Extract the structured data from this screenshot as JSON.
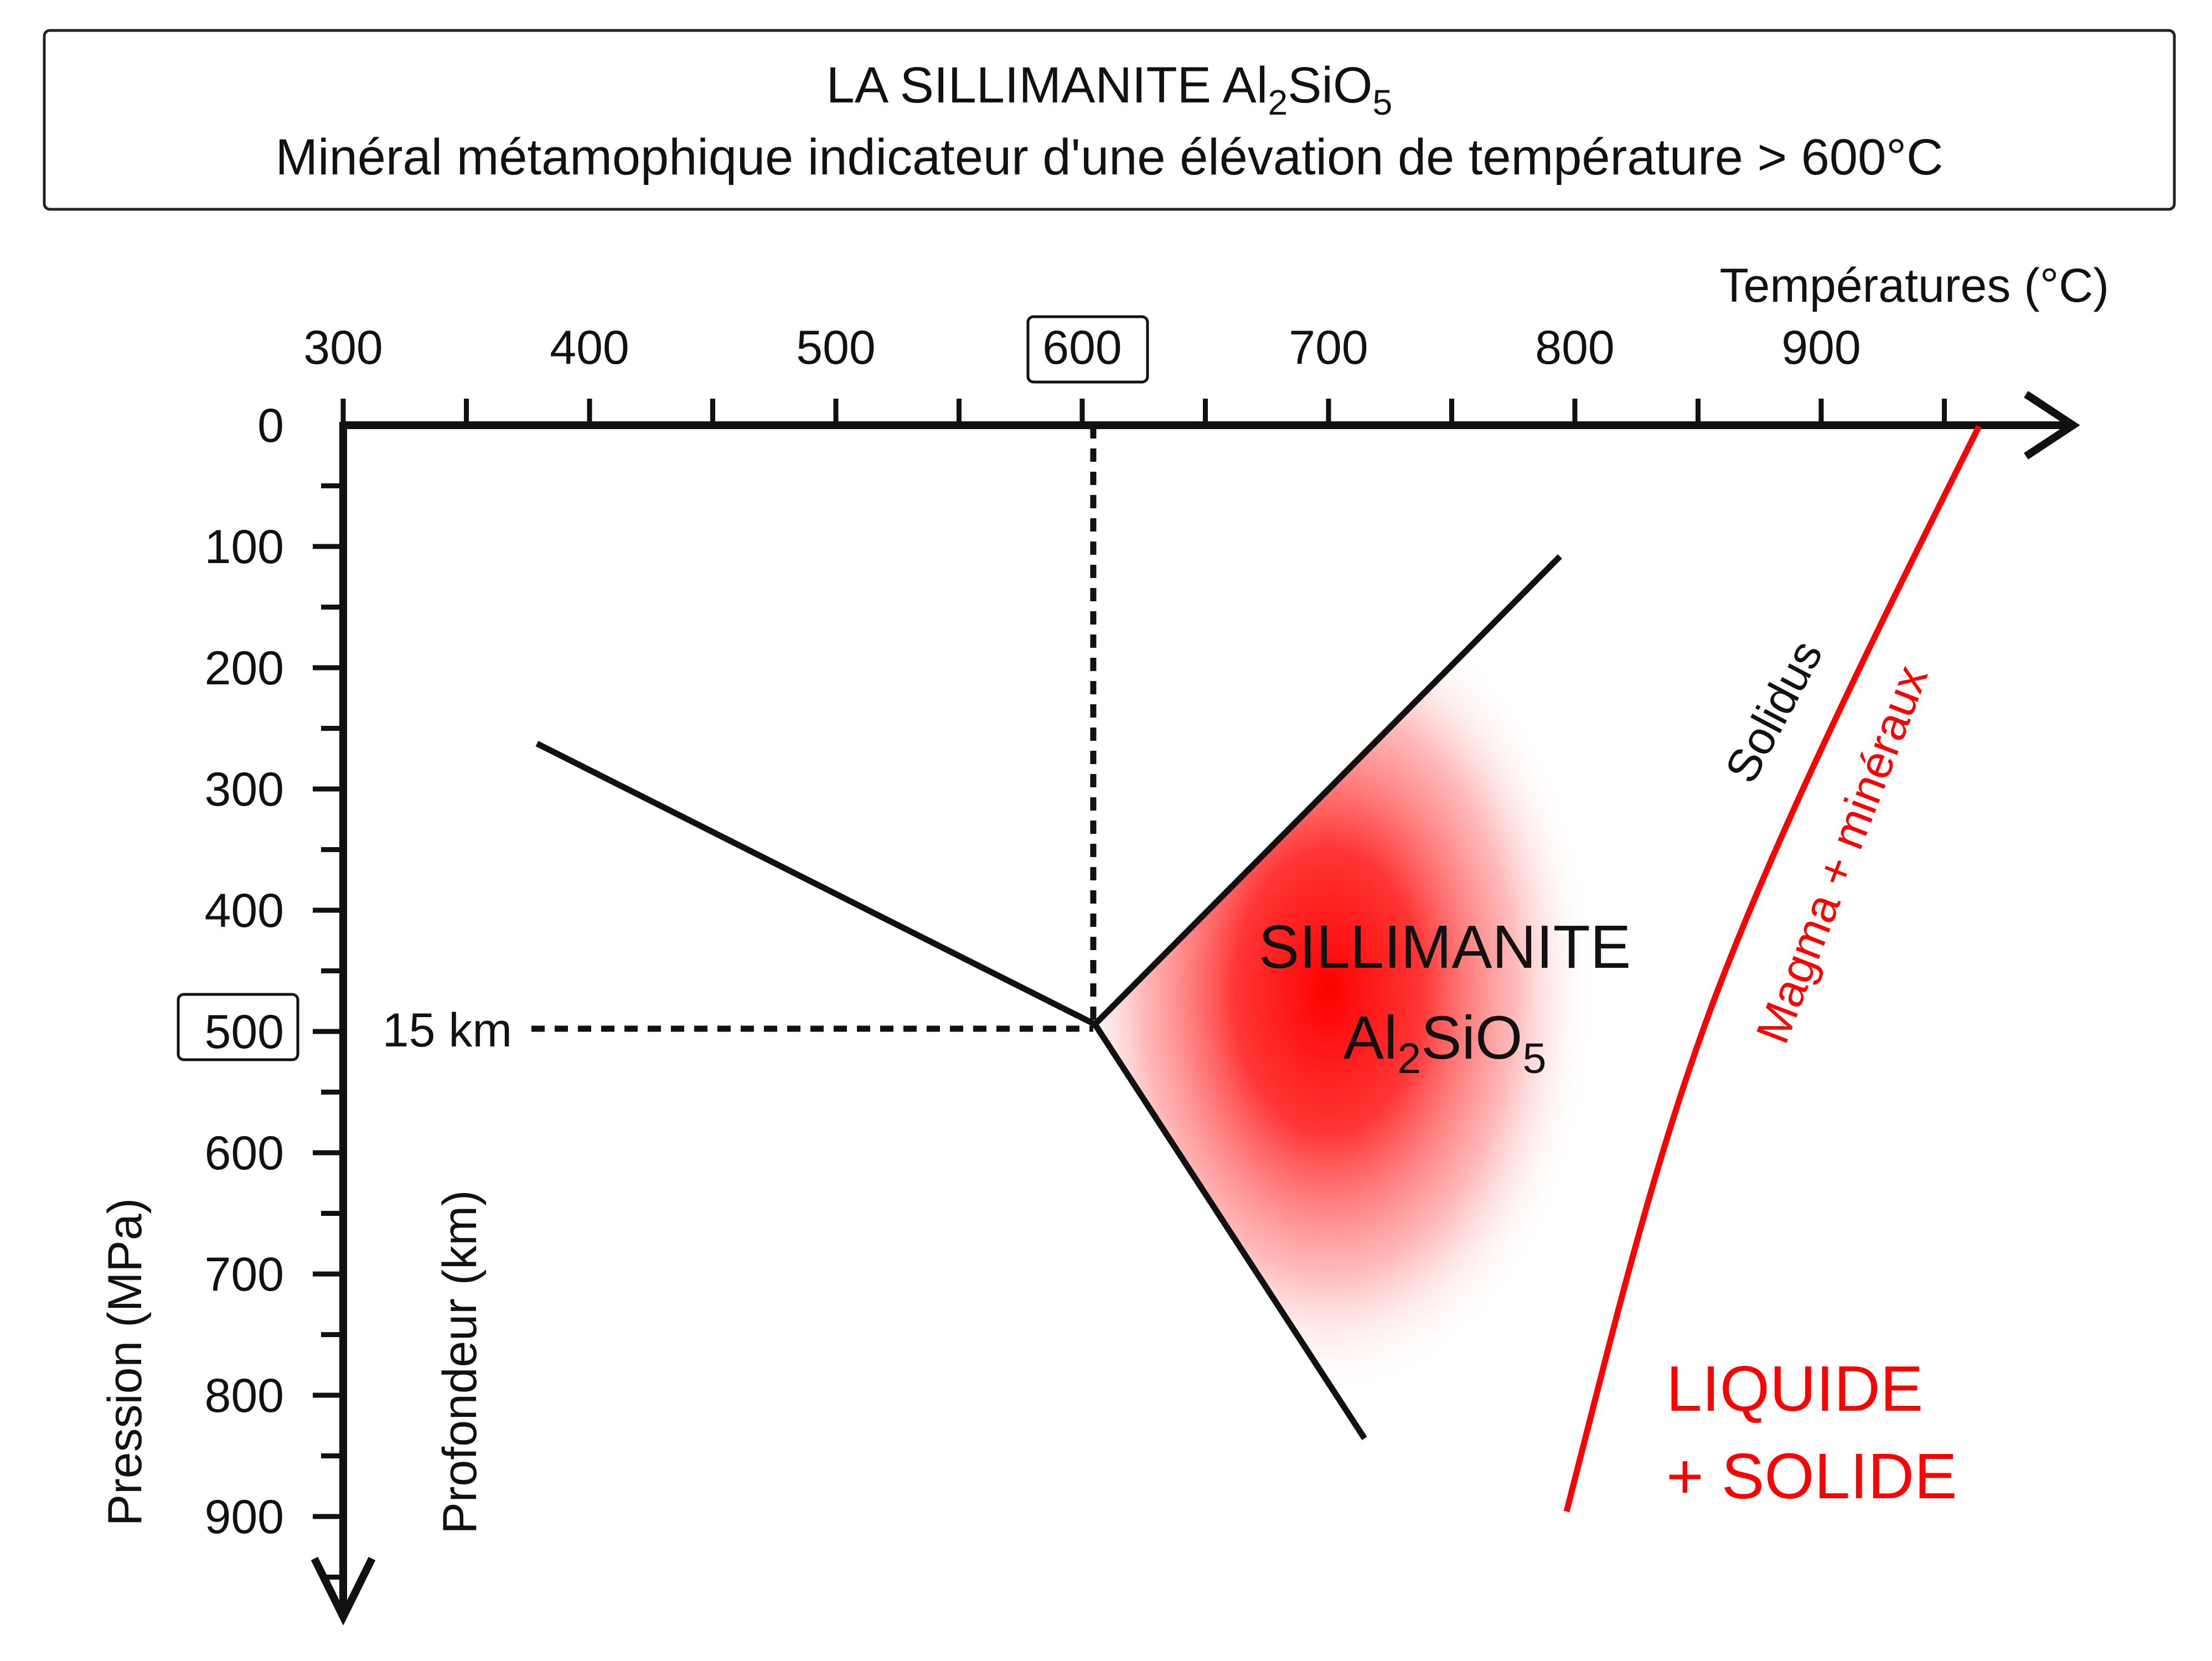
{
  "title": {
    "line1_main": "LA SILLIMANITE Al",
    "line1_sub1": "2",
    "line1_mid": "SiO",
    "line1_sub2": "5",
    "line2": "Minéral métamophique indicateur d'une élévation de température > 600°C"
  },
  "axes": {
    "x_title": "Températures (°C)",
    "y_title_pressure": "Pression (MPa)",
    "y_title_depth": "Profondeur (km)",
    "x_ticks": [
      "300",
      "400",
      "500",
      "600",
      "700",
      "800",
      "900"
    ],
    "y_ticks": [
      "0",
      "100",
      "200",
      "300",
      "400",
      "500",
      "600",
      "700",
      "800",
      "900"
    ],
    "highlighted_x_tick": "600",
    "highlighted_y_tick": "500"
  },
  "reference": {
    "depth_label": "15 km",
    "temperature_c": 600,
    "pressure_mpa": 500
  },
  "zones": {
    "sillimanite_name": "SILLIMANITE",
    "formula_main": "Al",
    "formula_sub1": "2",
    "formula_mid": "SiO",
    "formula_sub2": "5",
    "sillimanite_color": "#ff0000"
  },
  "curve_labels": {
    "solidus": "Solidus",
    "magma": "Magma + minéraux",
    "liquid_line1": "LIQUIDE",
    "liquid_line2": "+ SOLIDE",
    "red_color": "#ff0000"
  }
}
